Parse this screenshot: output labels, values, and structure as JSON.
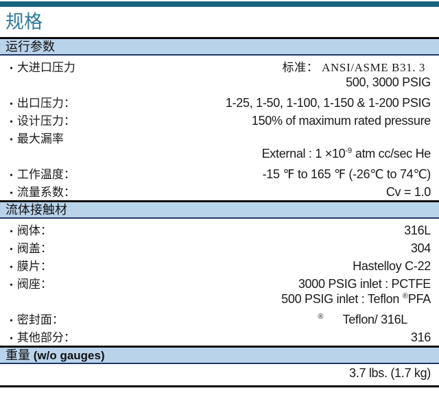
{
  "page": {
    "title": "规格"
  },
  "colors": {
    "top_bar": "#17657e",
    "title_text": "#2e7b9a",
    "section_header_bg": "#b9d3eb",
    "section_border_top": "#0b0b0b",
    "section_border_bottom": "#1f3864",
    "body_text": "#1a1a1a"
  },
  "sections": [
    {
      "header": "运行参数",
      "rows": [
        {
          "label": "大进口压力",
          "value": "标准：  ANSI/ASME B31. 3"
        },
        {
          "label": "",
          "value": "500, 3000 PSIG"
        },
        {
          "label": "出口压力：",
          "value": "1-25, 1-50, 1-100, 1-150 & 1-200 PSIG"
        },
        {
          "label": "设计压力：",
          "value": "150% of maximum rated pressure"
        },
        {
          "label": "最大漏率",
          "value": ""
        },
        {
          "label": "",
          "value_pre": "External : 1 ×10",
          "value_sup": "-9",
          "value_post": " atm cc/sec He"
        },
        {
          "label": "工作温度：",
          "value": "-15 ℉ to 165 ℉ (-26℃ to 74℃)"
        },
        {
          "label": "流量系数：",
          "value": "Cv = 1.0"
        }
      ]
    },
    {
      "header": "流体接触材",
      "rows": [
        {
          "label": "阀体：",
          "value": "316L"
        },
        {
          "label": "阀盖：",
          "value": "304"
        },
        {
          "label": "膜片：",
          "value": "Hastelloy C-22"
        },
        {
          "label": "阀座：",
          "value": "3000 PSIG inlet : PCTFE"
        },
        {
          "label": "",
          "value_pre": "500 PSIG inlet : Teflon ",
          "value_sup": "®",
          "value_post": "PFA"
        },
        {
          "label": "密封面：",
          "value_sup": "®",
          "value_post": "Teflon/ 316L"
        },
        {
          "label": "其他部分：",
          "value": "316"
        }
      ]
    },
    {
      "header_cjk": "重量",
      "header_en": " (w/o gauges)",
      "rows": [
        {
          "label": "",
          "value": "3.7 lbs. (1.7 kg)"
        }
      ]
    }
  ]
}
